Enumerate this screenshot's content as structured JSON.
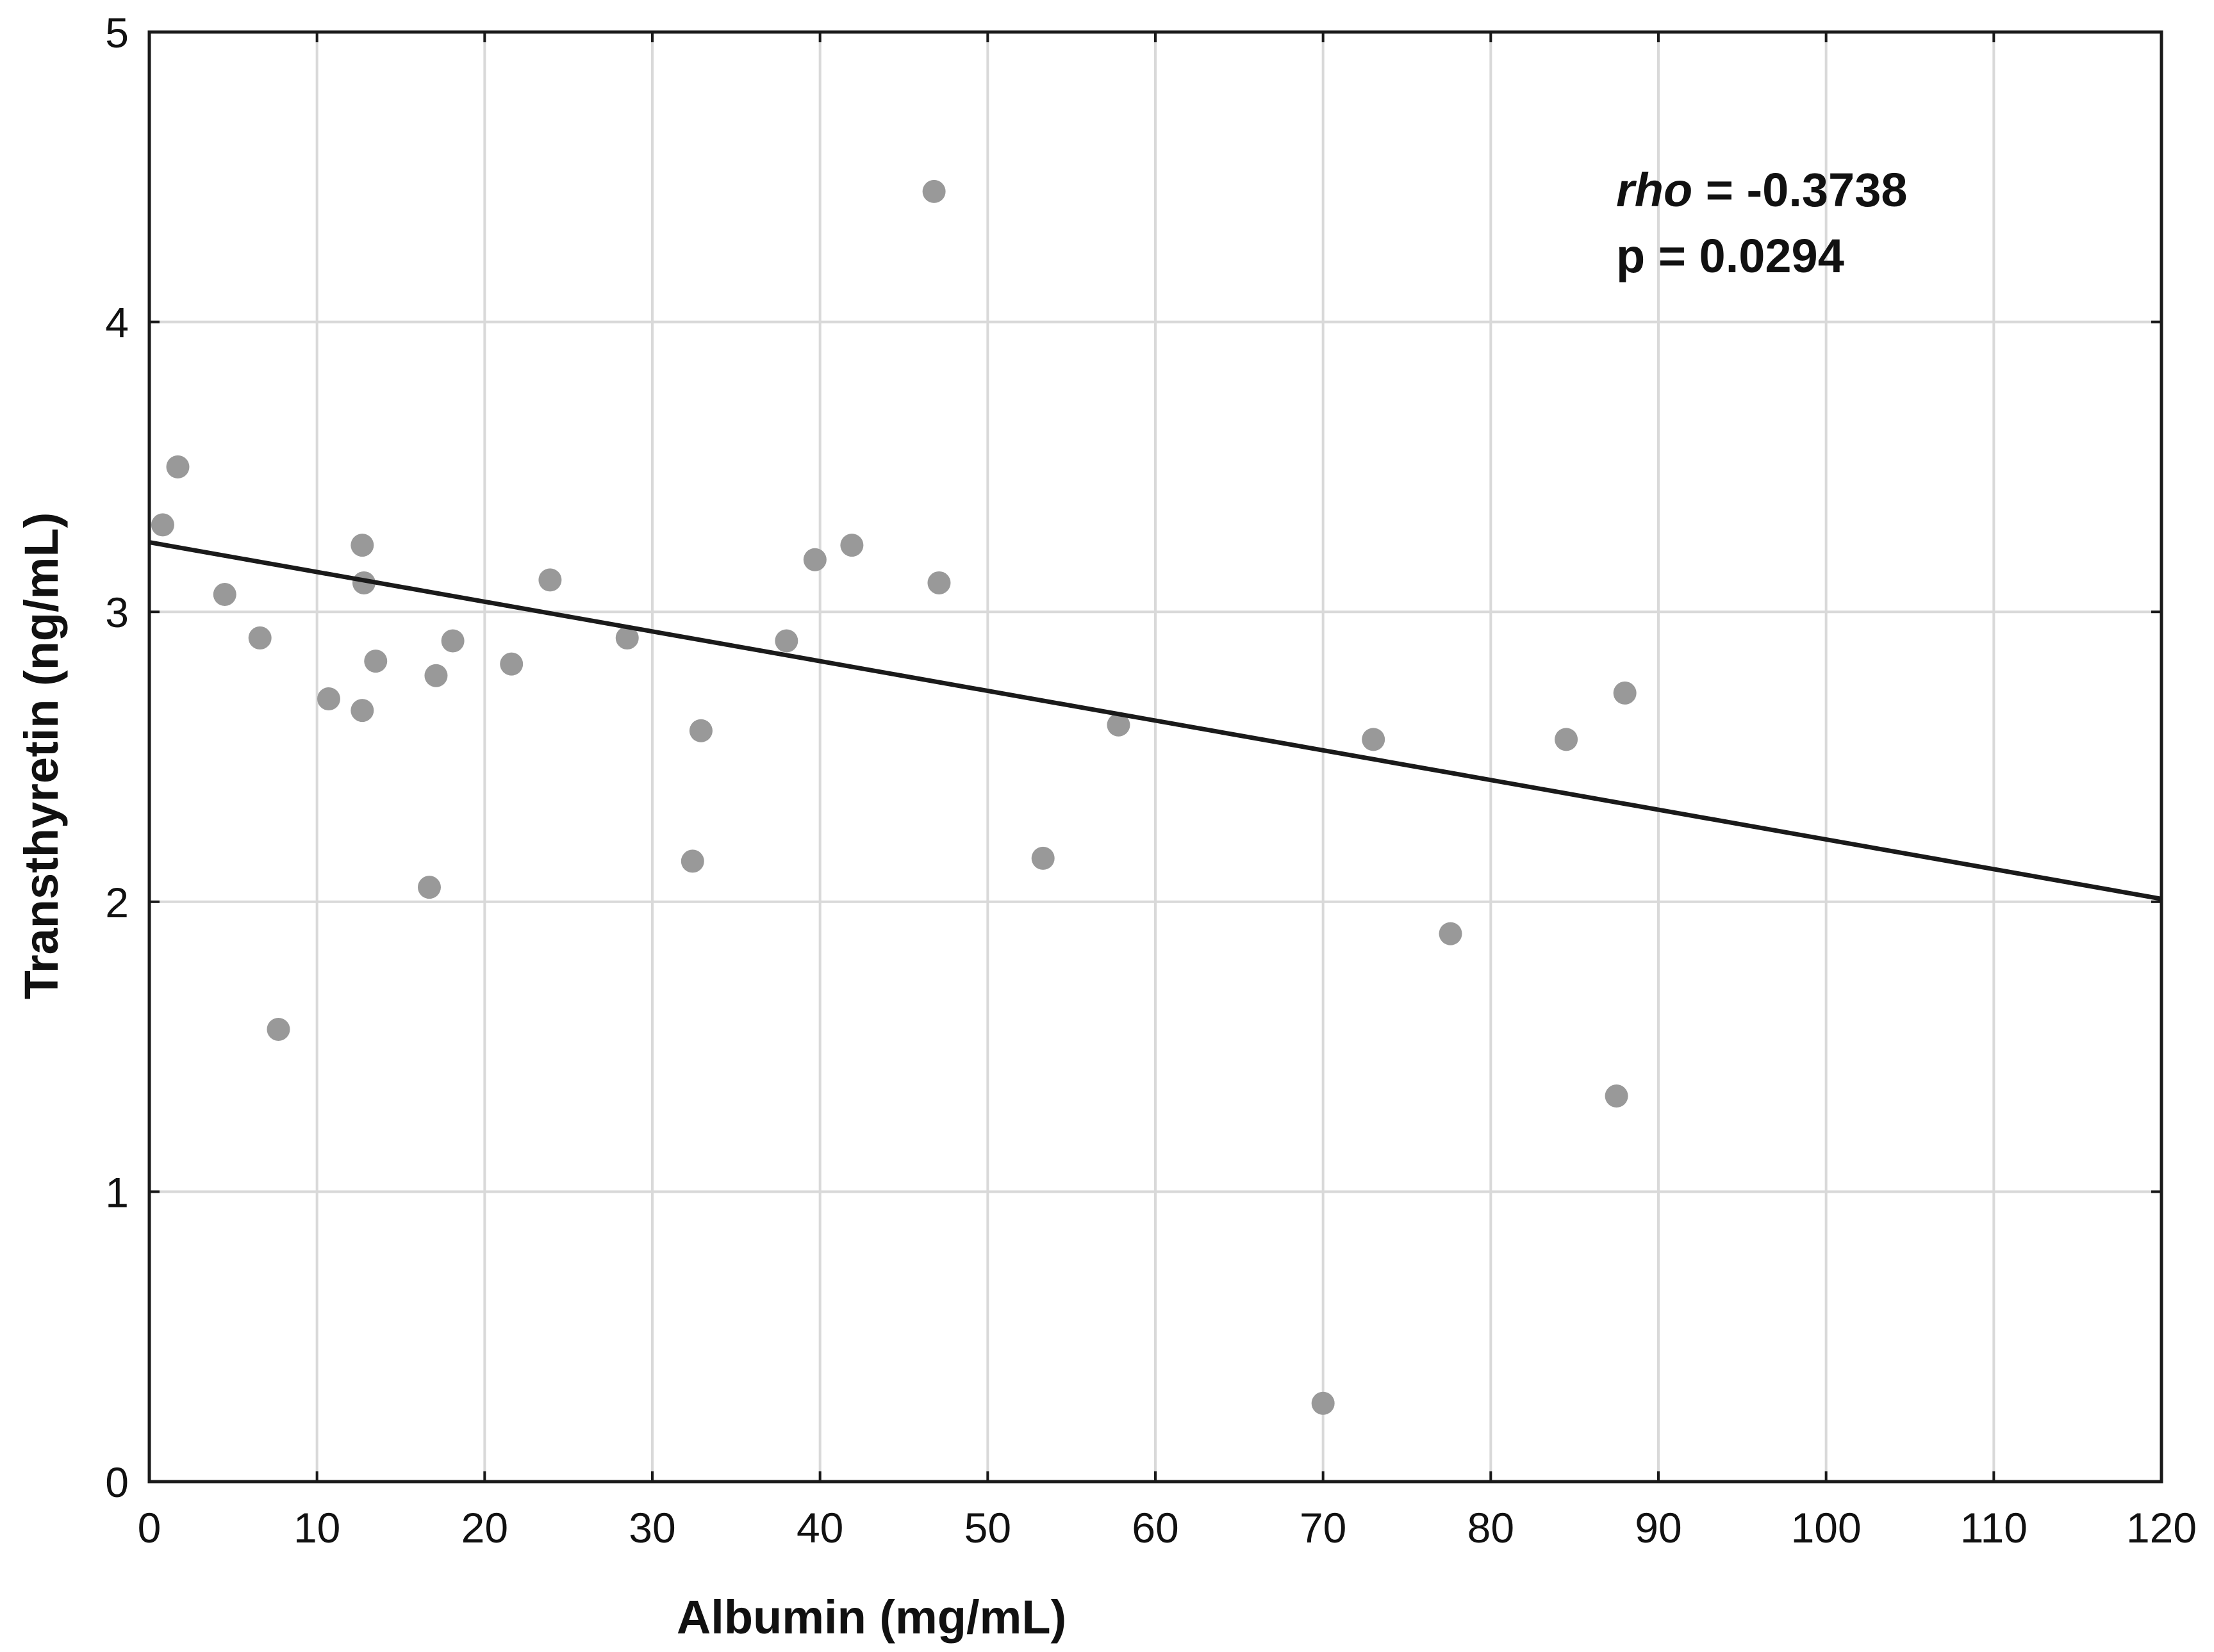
{
  "chart_data": {
    "type": "scatter",
    "title": "",
    "xlabel": "Albumin (mg/mL)",
    "ylabel": "Transthyretin (ng/mL)",
    "xlim": [
      0,
      120
    ],
    "ylim": [
      0,
      5
    ],
    "xticks": [
      "0",
      "10",
      "20",
      "30",
      "40",
      "50",
      "60",
      "70",
      "80",
      "90",
      "100",
      "110",
      "120"
    ],
    "yticks": [
      "0",
      "1",
      "2",
      "3",
      "4",
      "5"
    ],
    "grid": true,
    "series": [
      {
        "name": "samples",
        "color": "#999999",
        "points": [
          {
            "x": 0.8,
            "y": 3.3
          },
          {
            "x": 1.7,
            "y": 3.5
          },
          {
            "x": 4.5,
            "y": 3.06
          },
          {
            "x": 6.6,
            "y": 2.91
          },
          {
            "x": 7.7,
            "y": 1.56
          },
          {
            "x": 10.7,
            "y": 2.7
          },
          {
            "x": 12.7,
            "y": 3.23
          },
          {
            "x": 12.8,
            "y": 3.1
          },
          {
            "x": 12.7,
            "y": 2.66
          },
          {
            "x": 13.5,
            "y": 2.83
          },
          {
            "x": 16.7,
            "y": 2.05
          },
          {
            "x": 17.1,
            "y": 2.78
          },
          {
            "x": 18.1,
            "y": 2.9
          },
          {
            "x": 21.6,
            "y": 2.82
          },
          {
            "x": 23.9,
            "y": 3.11
          },
          {
            "x": 28.5,
            "y": 2.91
          },
          {
            "x": 32.4,
            "y": 2.14
          },
          {
            "x": 32.9,
            "y": 2.59
          },
          {
            "x": 38.0,
            "y": 2.9
          },
          {
            "x": 39.7,
            "y": 3.18
          },
          {
            "x": 41.9,
            "y": 3.23
          },
          {
            "x": 46.8,
            "y": 4.45
          },
          {
            "x": 47.1,
            "y": 3.1
          },
          {
            "x": 53.3,
            "y": 2.15
          },
          {
            "x": 57.8,
            "y": 2.61
          },
          {
            "x": 70.0,
            "y": 0.27
          },
          {
            "x": 73.0,
            "y": 2.56
          },
          {
            "x": 77.6,
            "y": 1.89
          },
          {
            "x": 84.5,
            "y": 2.56
          },
          {
            "x": 87.5,
            "y": 1.33
          },
          {
            "x": 88.0,
            "y": 2.72
          }
        ]
      }
    ],
    "fit_line": {
      "x": [
        0,
        120
      ],
      "y": [
        3.24,
        2.01
      ],
      "color": "#1a1a1a"
    },
    "annotation": {
      "rho_label": "rho",
      "rho_value": " = -0.3738",
      "p_text": "p = 0.0294"
    }
  }
}
